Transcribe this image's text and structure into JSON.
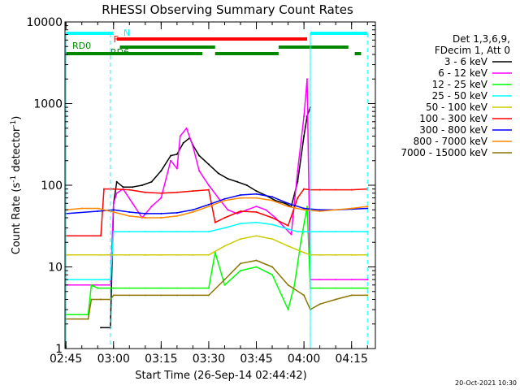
{
  "chart_data": {
    "type": "line",
    "title": "RHESSI Observing Summary Count Rates",
    "xlabel": "Start Time (26-Sep-14 02:44:42)",
    "ylabel": "Count Rate (s-1 detector-1)",
    "ylabel_parts": {
      "main": "Count Rate (s",
      "sup1": "-1",
      "mid": " detector",
      "sup2": "-1",
      "end": ")"
    },
    "footer": "20-Oct-2021 10:30",
    "y_scale": "log",
    "ylim": [
      1,
      10000
    ],
    "xlim": [
      "02:44:42",
      "04:22:30"
    ],
    "x_ticks": [
      "02:45",
      "03:00",
      "03:15",
      "03:30",
      "03:45",
      "04:00",
      "04:15"
    ],
    "y_ticks": [
      "1",
      "10",
      "100",
      "1000",
      "10000"
    ],
    "legend": {
      "position": "top-right",
      "header": [
        "Det 1,3,6,9,",
        "FDecim 1, Att 0"
      ],
      "entries": [
        {
          "label": "3 - 6 keV",
          "color": "#000000"
        },
        {
          "label": "6 - 12 keV",
          "color": "#ff00ff"
        },
        {
          "label": "12 - 25 keV",
          "color": "#00ff00"
        },
        {
          "label": "25 - 50 keV",
          "color": "#00ffff"
        },
        {
          "label": "50 - 100 keV",
          "color": "#cccc00"
        },
        {
          "label": "100 - 300 keV",
          "color": "#ff0000"
        },
        {
          "label": "300 - 800 keV",
          "color": "#0000ff"
        },
        {
          "label": "800 - 7000 keV",
          "color": "#ff8800"
        },
        {
          "label": "7000 - 15000 keV",
          "color": "#8b7500"
        }
      ]
    },
    "flags": {
      "N": {
        "label": "N",
        "color": "#00ffff",
        "intervals": [
          [
            "02:45",
            "03:00"
          ],
          [
            "04:02",
            "04:20"
          ]
        ]
      },
      "F": {
        "label": "F",
        "color": "#ff0000",
        "intervals": [
          [
            "03:01",
            "04:01"
          ]
        ]
      },
      "RD0": {
        "label": "RD0",
        "color": "#008800",
        "intervals": [
          [
            "03:02",
            "03:32"
          ],
          [
            "03:52",
            "04:14"
          ]
        ]
      },
      "RD6": {
        "label": "RD6",
        "color": "#008800",
        "intervals": [
          [
            "02:45",
            "03:28"
          ],
          [
            "03:32",
            "03:52"
          ],
          [
            "04:16",
            "04:18"
          ]
        ]
      }
    },
    "markers": {
      "dashed_vlines": [
        "02:59",
        "04:02",
        "04:20"
      ],
      "solid_vlines": [
        "02:45",
        "04:02"
      ],
      "color": "#00ffff"
    },
    "series": [
      {
        "name": "3 - 6 keV",
        "color": "#000000",
        "x": [
          "02:56",
          "02:59",
          "03:00",
          "03:01",
          "03:03",
          "03:06",
          "03:09",
          "03:12",
          "03:15",
          "03:18",
          "03:20",
          "03:22",
          "03:24",
          "03:25",
          "03:27",
          "03:30",
          "03:33",
          "03:36",
          "03:39",
          "03:42",
          "03:45",
          "03:48",
          "03:51",
          "03:54",
          "03:56",
          "03:58",
          "04:00",
          "04:01",
          "04:02"
        ],
        "y": [
          1.8,
          1.8,
          60,
          110,
          95,
          95,
          100,
          110,
          150,
          230,
          240,
          330,
          380,
          310,
          230,
          180,
          140,
          120,
          110,
          100,
          85,
          75,
          65,
          60,
          55,
          110,
          400,
          700,
          900
        ]
      },
      {
        "name": "6 - 12 keV",
        "color": "#ff00ff",
        "x": [
          "02:45",
          "02:59",
          "03:00",
          "03:01",
          "03:03",
          "03:06",
          "03:09",
          "03:12",
          "03:15",
          "03:18",
          "03:20",
          "03:21",
          "03:23",
          "03:25",
          "03:27",
          "03:30",
          "03:33",
          "03:36",
          "03:39",
          "03:42",
          "03:45",
          "03:48",
          "03:51",
          "03:54",
          "03:56",
          "03:58",
          "04:00",
          "04:01",
          "04:02",
          "04:05",
          "04:10",
          "04:15",
          "04:20"
        ],
        "y": [
          6,
          6,
          60,
          80,
          90,
          60,
          40,
          55,
          70,
          200,
          160,
          400,
          500,
          300,
          150,
          100,
          70,
          50,
          45,
          50,
          55,
          50,
          40,
          30,
          25,
          150,
          700,
          2000,
          7,
          7,
          7,
          7,
          7
        ]
      },
      {
        "name": "12 - 25 keV",
        "color": "#00ff00",
        "x": [
          "02:45",
          "02:52",
          "02:53",
          "02:55",
          "02:59",
          "03:00",
          "03:05",
          "03:10",
          "03:15",
          "03:20",
          "03:25",
          "03:30",
          "03:32",
          "03:35",
          "03:40",
          "03:45",
          "03:50",
          "03:55",
          "03:57",
          "03:59",
          "04:01",
          "04:02",
          "04:05",
          "04:10",
          "04:15",
          "04:20"
        ],
        "y": [
          2.6,
          2.6,
          6,
          5.5,
          5.5,
          5.5,
          5.5,
          5.5,
          5.5,
          5.5,
          5.5,
          5.5,
          15,
          6,
          9,
          10,
          8,
          3,
          6,
          20,
          55,
          5.5,
          5.5,
          5.5,
          5.5,
          5.5
        ]
      },
      {
        "name": "25 - 50 keV",
        "color": "#00ffff",
        "x": [
          "02:45",
          "02:59",
          "03:00",
          "03:05",
          "03:10",
          "03:15",
          "03:20",
          "03:25",
          "03:30",
          "03:35",
          "03:40",
          "03:45",
          "03:50",
          "03:55",
          "03:58",
          "04:00",
          "04:02",
          "04:05",
          "04:10",
          "04:15",
          "04:20"
        ],
        "y": [
          7,
          7,
          27,
          27,
          27,
          27,
          27,
          27,
          27,
          30,
          34,
          35,
          33,
          29,
          27,
          27,
          27,
          27,
          27,
          27,
          27
        ]
      },
      {
        "name": "50 - 100 keV",
        "color": "#cccc00",
        "x": [
          "02:45",
          "02:56",
          "03:00",
          "03:05",
          "03:10",
          "03:15",
          "03:20",
          "03:25",
          "03:30",
          "03:35",
          "03:40",
          "03:45",
          "03:50",
          "03:55",
          "04:00",
          "04:02",
          "04:05",
          "04:10",
          "04:15",
          "04:20"
        ],
        "y": [
          14,
          14,
          14,
          14,
          14,
          14,
          14,
          14,
          14,
          18,
          22,
          24,
          22,
          18,
          15,
          14,
          14,
          14,
          14,
          14
        ]
      },
      {
        "name": "100 - 300 keV",
        "color": "#ff0000",
        "x": [
          "02:45",
          "02:56",
          "02:57",
          "03:00",
          "03:05",
          "03:10",
          "03:15",
          "03:20",
          "03:25",
          "03:30",
          "03:32",
          "03:35",
          "03:40",
          "03:45",
          "03:50",
          "03:55",
          "03:58",
          "04:00",
          "04:02",
          "04:05",
          "04:10",
          "04:15",
          "04:20"
        ],
        "y": [
          24,
          24,
          90,
          90,
          88,
          82,
          80,
          82,
          85,
          88,
          35,
          40,
          48,
          47,
          40,
          32,
          70,
          90,
          88,
          88,
          88,
          88,
          90
        ]
      },
      {
        "name": "300 - 800 keV",
        "color": "#0000ff",
        "x": [
          "02:45",
          "02:55",
          "03:00",
          "03:05",
          "03:10",
          "03:15",
          "03:20",
          "03:25",
          "03:30",
          "03:35",
          "03:40",
          "03:45",
          "03:50",
          "03:55",
          "04:00",
          "04:05",
          "04:10",
          "04:15",
          "04:20"
        ],
        "y": [
          45,
          48,
          50,
          47,
          45,
          45,
          46,
          50,
          58,
          68,
          76,
          78,
          72,
          60,
          52,
          50,
          50,
          51,
          52
        ]
      },
      {
        "name": "800 - 7000 keV",
        "color": "#ff8800",
        "x": [
          "02:45",
          "02:50",
          "02:55",
          "03:00",
          "03:05",
          "03:10",
          "03:15",
          "03:20",
          "03:25",
          "03:30",
          "03:35",
          "03:40",
          "03:45",
          "03:50",
          "03:55",
          "04:00",
          "04:05",
          "04:10",
          "04:15",
          "04:20"
        ],
        "y": [
          50,
          52,
          52,
          47,
          42,
          40,
          40,
          42,
          47,
          55,
          65,
          70,
          70,
          65,
          55,
          50,
          48,
          50,
          52,
          55
        ]
      },
      {
        "name": "7000 - 15000 keV",
        "color": "#8b7500",
        "x": [
          "02:45",
          "02:52",
          "02:53",
          "02:56",
          "02:59",
          "03:00",
          "03:05",
          "03:10",
          "03:15",
          "03:20",
          "03:25",
          "03:30",
          "03:35",
          "03:40",
          "03:45",
          "03:50",
          "03:55",
          "04:00",
          "04:02",
          "04:05",
          "04:10",
          "04:15",
          "04:20"
        ],
        "y": [
          2.3,
          2.3,
          4,
          4,
          4,
          4.5,
          4.5,
          4.5,
          4.5,
          4.5,
          4.5,
          4.5,
          7,
          11,
          12,
          10,
          6,
          4.5,
          3,
          3.5,
          4,
          4.5,
          4.5
        ]
      }
    ]
  }
}
